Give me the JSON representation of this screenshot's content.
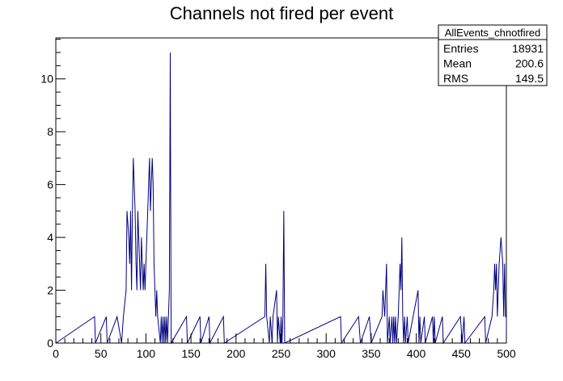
{
  "chart_data": {
    "type": "bar",
    "title": "Channels not fired per event",
    "xlabel": "",
    "ylabel": "",
    "xlim": [
      0,
      500
    ],
    "ylim": [
      0,
      11.55
    ],
    "x_ticks": [
      0,
      50,
      100,
      150,
      200,
      250,
      300,
      350,
      400,
      450,
      500
    ],
    "y_ticks": [
      0,
      2,
      4,
      6,
      8,
      10
    ],
    "grid": false,
    "line_color": "#000080",
    "stats_box": {
      "name": "AllEvents_chnotfired",
      "rows": [
        {
          "label": "Entries",
          "value": "18931"
        },
        {
          "label": "Mean",
          "value": "200.6"
        },
        {
          "label": "RMS",
          "value": "149.5"
        }
      ]
    },
    "bins": [
      [
        43,
        1
      ],
      [
        56,
        1
      ],
      [
        68,
        1
      ],
      [
        69,
        1
      ],
      [
        70,
        1
      ],
      [
        71,
        1
      ],
      [
        72,
        1
      ],
      [
        75,
        1
      ],
      [
        76,
        1
      ],
      [
        77,
        1
      ],
      [
        78,
        2
      ],
      [
        79,
        5
      ],
      [
        80,
        5
      ],
      [
        81,
        4
      ],
      [
        82,
        3
      ],
      [
        83,
        5
      ],
      [
        84,
        2
      ],
      [
        85,
        5
      ],
      [
        86,
        7
      ],
      [
        87,
        6
      ],
      [
        88,
        5
      ],
      [
        89,
        3
      ],
      [
        90,
        2
      ],
      [
        91,
        5
      ],
      [
        92,
        5
      ],
      [
        93,
        3
      ],
      [
        94,
        2
      ],
      [
        95,
        4
      ],
      [
        96,
        4
      ],
      [
        97,
        2
      ],
      [
        98,
        3
      ],
      [
        99,
        2
      ],
      [
        100,
        3
      ],
      [
        101,
        3
      ],
      [
        102,
        3
      ],
      [
        103,
        6
      ],
      [
        104,
        7
      ],
      [
        105,
        5
      ],
      [
        106,
        6
      ],
      [
        107,
        7
      ],
      [
        108,
        6
      ],
      [
        109,
        3
      ],
      [
        110,
        2
      ],
      [
        111,
        1
      ],
      [
        112,
        2
      ],
      [
        113,
        1
      ],
      [
        114,
        1
      ],
      [
        115,
        1
      ],
      [
        117,
        1
      ],
      [
        119,
        1
      ],
      [
        121,
        1
      ],
      [
        123,
        1
      ],
      [
        126,
        2
      ],
      [
        127,
        11
      ],
      [
        145,
        1
      ],
      [
        160,
        1
      ],
      [
        170,
        1
      ],
      [
        186,
        1
      ],
      [
        232,
        1
      ],
      [
        233,
        3
      ],
      [
        234,
        1
      ],
      [
        235,
        1
      ],
      [
        236,
        1
      ],
      [
        238,
        1
      ],
      [
        239,
        1
      ],
      [
        241,
        1
      ],
      [
        242,
        1
      ],
      [
        243,
        1
      ],
      [
        244,
        1
      ],
      [
        245,
        2
      ],
      [
        247,
        1
      ],
      [
        248,
        1
      ],
      [
        250,
        1
      ],
      [
        252,
        1
      ],
      [
        253,
        5
      ],
      [
        316,
        1
      ],
      [
        336,
        1
      ],
      [
        337,
        1
      ],
      [
        348,
        1
      ],
      [
        349,
        1
      ],
      [
        362,
        1
      ],
      [
        363,
        2
      ],
      [
        364,
        2
      ],
      [
        365,
        1
      ],
      [
        366,
        2
      ],
      [
        367,
        3
      ],
      [
        370,
        1
      ],
      [
        373,
        1
      ],
      [
        375,
        1
      ],
      [
        377,
        1
      ],
      [
        380,
        1
      ],
      [
        381,
        2
      ],
      [
        382,
        3
      ],
      [
        383,
        2
      ],
      [
        384,
        4
      ],
      [
        385,
        1
      ],
      [
        387,
        1
      ],
      [
        390,
        1
      ],
      [
        402,
        2
      ],
      [
        404,
        1
      ],
      [
        409,
        1
      ],
      [
        418,
        1
      ],
      [
        420,
        1
      ],
      [
        429,
        1
      ],
      [
        449,
        1
      ],
      [
        450,
        1
      ],
      [
        453,
        1
      ],
      [
        476,
        1
      ],
      [
        484,
        1
      ],
      [
        485,
        1
      ],
      [
        486,
        2
      ],
      [
        487,
        3
      ],
      [
        488,
        2
      ],
      [
        489,
        3
      ],
      [
        490,
        1
      ],
      [
        491,
        2
      ],
      [
        492,
        3
      ],
      [
        493,
        3
      ],
      [
        494,
        4
      ],
      [
        495,
        4
      ],
      [
        496,
        3
      ],
      [
        497,
        1
      ],
      [
        498,
        3
      ],
      [
        499,
        1
      ]
    ]
  }
}
